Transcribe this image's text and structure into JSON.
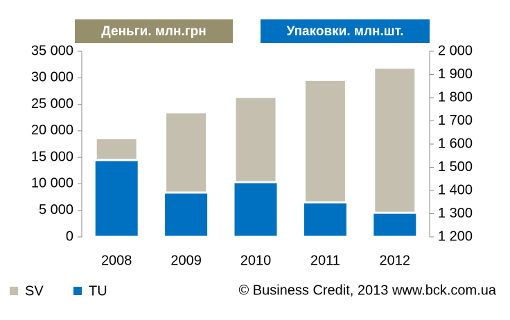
{
  "chart_data": {
    "type": "bar",
    "y_label": "Деньги. млн.грн",
    "y2_label": "Упаковки. млн.шт.",
    "annotation": "© Business Credit, 2013  www.bck.com.ua",
    "categories": [
      "2008",
      "2009",
      "2010",
      "2011",
      "2012"
    ],
    "series": [
      {
        "name": "SV",
        "color": "#c4bfae",
        "values": [
          18600,
          23500,
          26400,
          29600,
          31900
        ]
      },
      {
        "name": "TU",
        "color": "#0070c0",
        "values": [
          1531,
          1391,
          1436,
          1349,
          1304
        ],
        "axis": "y2"
      }
    ],
    "ylim": [
      0,
      35000
    ],
    "yticks": [
      0,
      {
        "value": 5000,
        "label": "5 000"
      },
      {
        "value": 10000,
        "label": "10 000"
      },
      {
        "value": 15000,
        "label": "15 000"
      },
      {
        "value": 20000,
        "label": "20 000"
      },
      {
        "value": 25000,
        "label": "25 000"
      },
      {
        "value": 30000,
        "label": "30 000"
      },
      {
        "value": 35000,
        "label": "35 000"
      }
    ],
    "y2lim": [
      1200,
      2000
    ],
    "y2ticks": [
      {
        "value": 1200,
        "label": "1 200"
      },
      {
        "value": 1300,
        "label": "1 300"
      },
      {
        "value": 1400,
        "label": "1 400"
      },
      {
        "value": 1500,
        "label": "1 500"
      },
      {
        "value": 1600,
        "label": "1 600"
      },
      {
        "value": 1700,
        "label": "1 700"
      },
      {
        "value": 1800,
        "label": "1 800"
      },
      {
        "value": 1900,
        "label": "1 900"
      },
      {
        "value": 2000,
        "label": "2 000"
      }
    ],
    "grid": false
  }
}
